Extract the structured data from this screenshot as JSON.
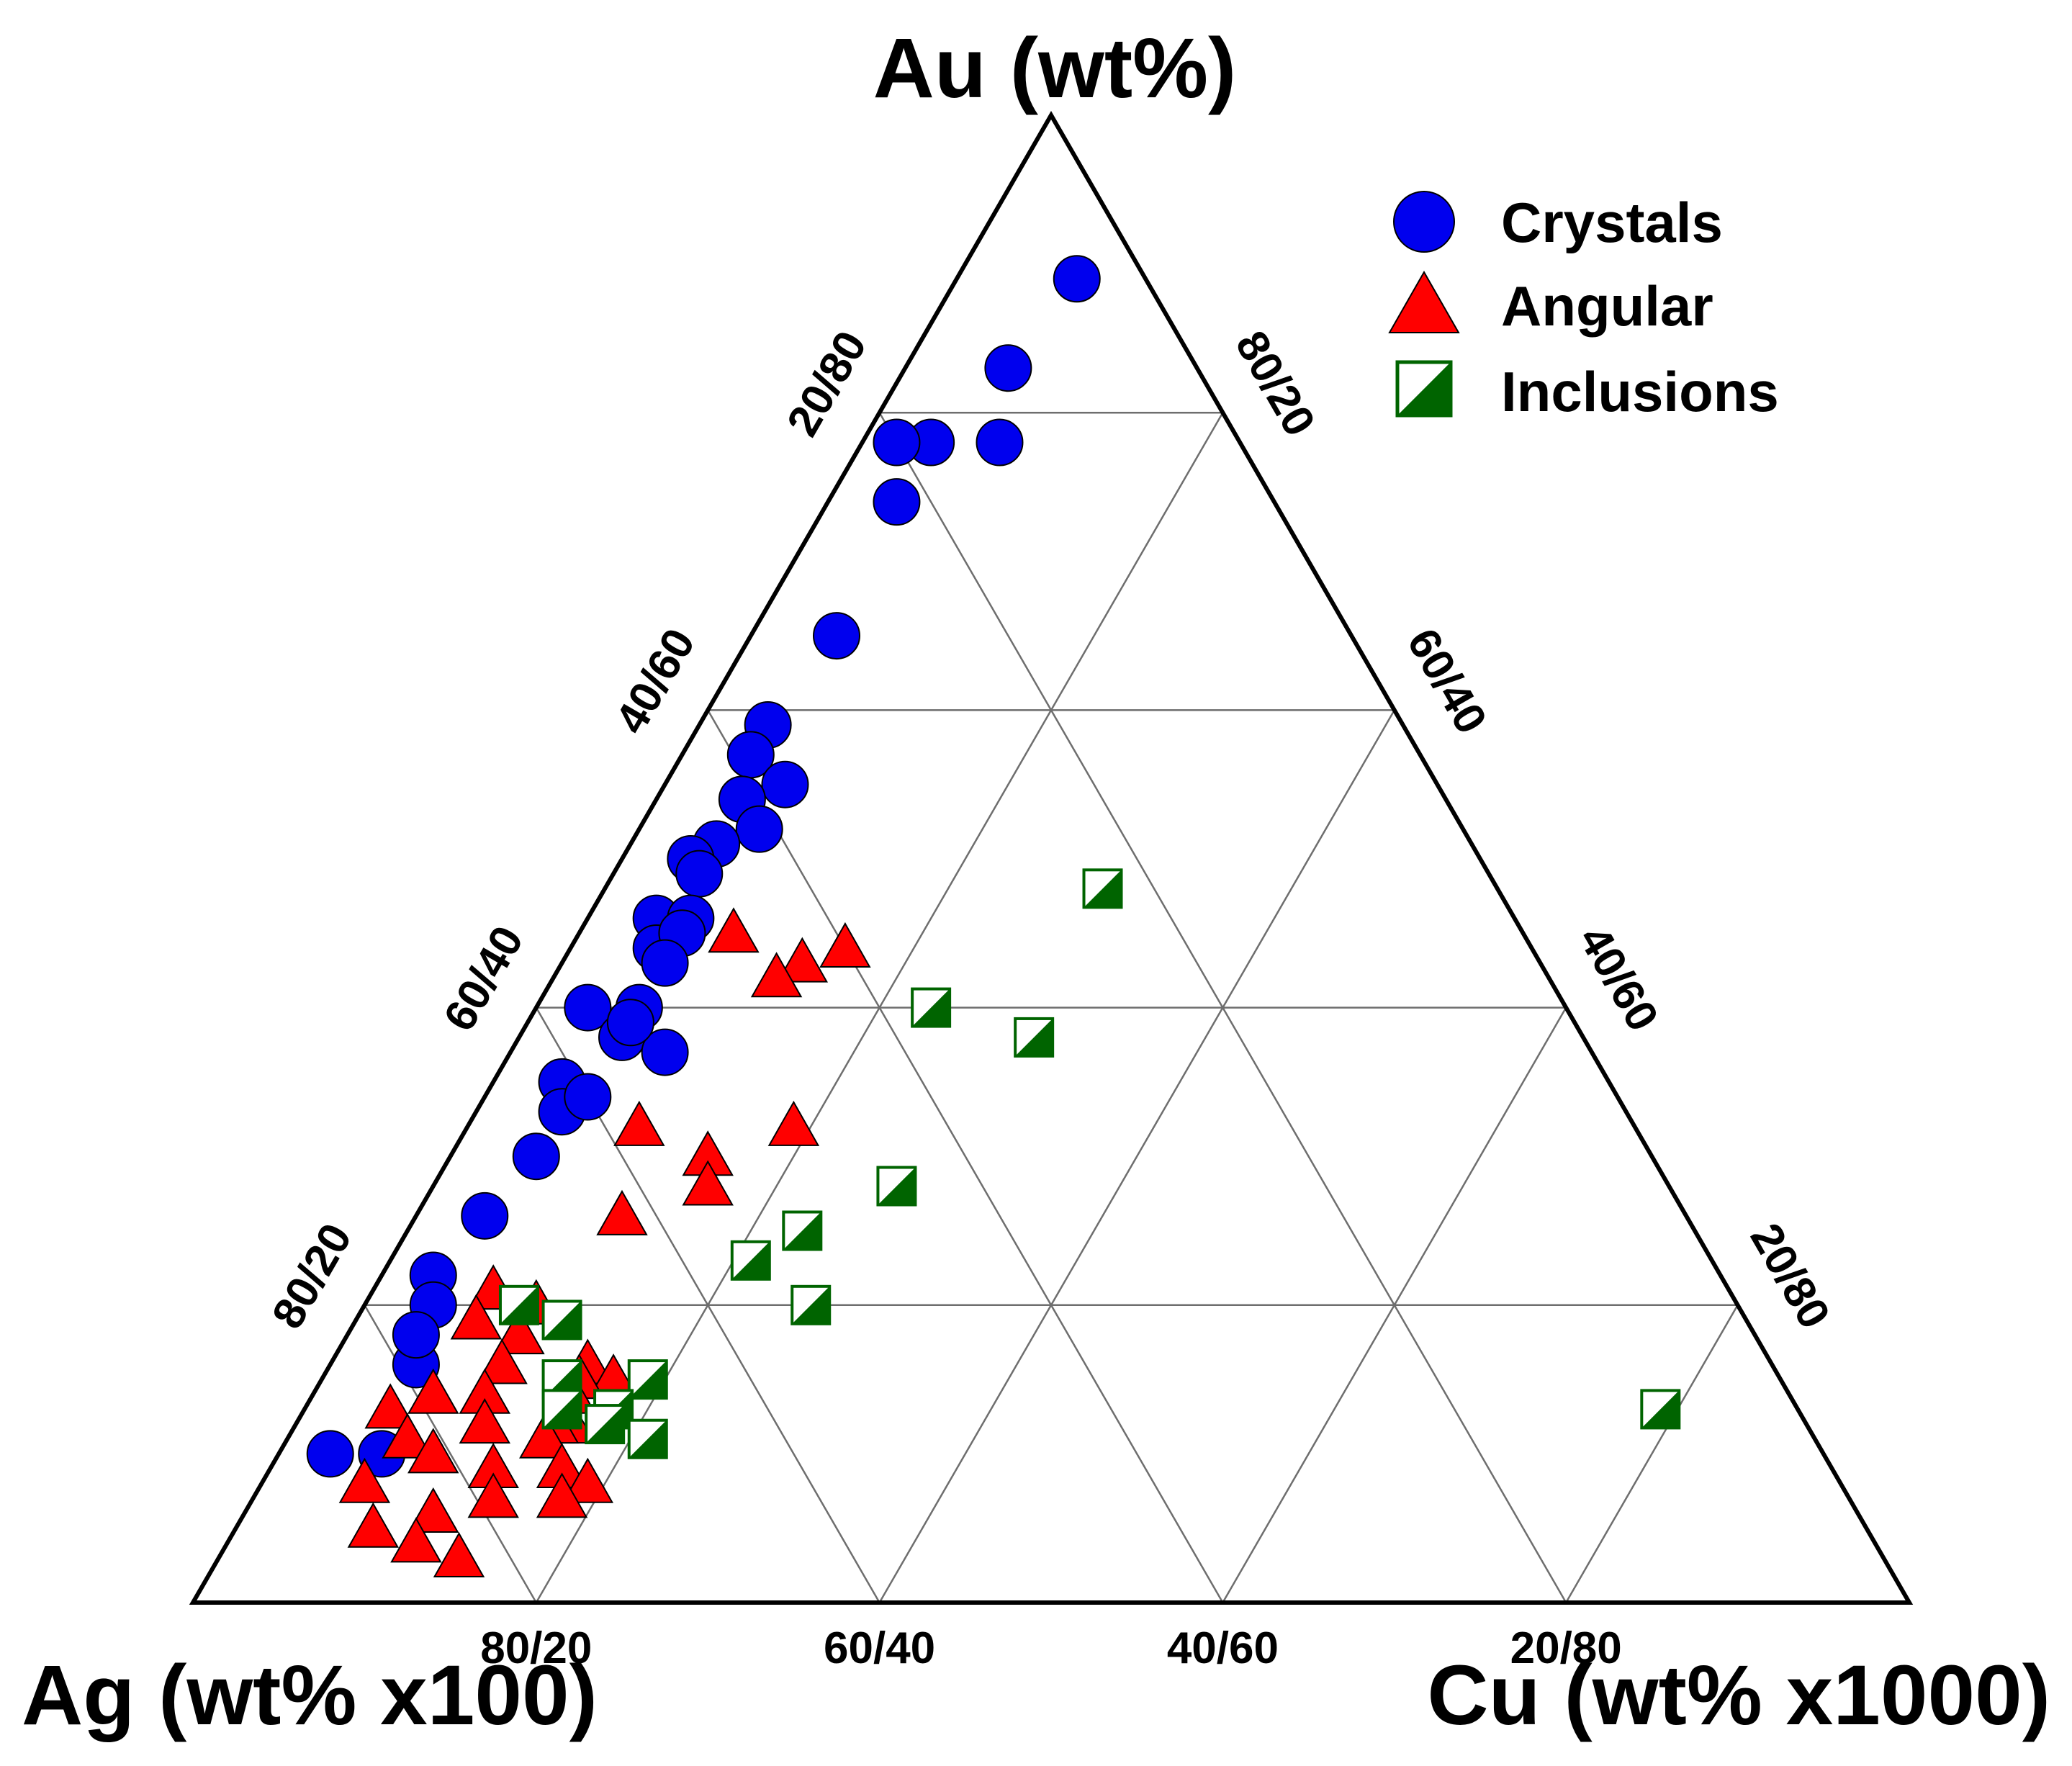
{
  "chart_data": {
    "type": "ternary",
    "axes": {
      "top": "Au (wt%)",
      "left": "Ag (wt% x100)",
      "right": "Cu (wt% x1000)"
    },
    "tick_labels": {
      "left_edge": [
        "80/20",
        "60/40",
        "40/60",
        "20/80"
      ],
      "right_edge": [
        "80/20",
        "60/40",
        "40/60",
        "20/80"
      ],
      "bottom_edge": [
        "80/20",
        "60/40",
        "40/60",
        "20/80"
      ]
    },
    "grid_fractions": [
      0.2,
      0.4,
      0.6,
      0.8
    ],
    "legend": {
      "placement": "top-right"
    },
    "series": [
      {
        "name": "Crystals",
        "marker": "circle",
        "color": "#0000ee",
        "points": [
          {
            "Au": 0.89,
            "Ag": 0.04,
            "Cu": 0.07
          },
          {
            "Au": 0.83,
            "Ag": 0.11,
            "Cu": 0.06
          },
          {
            "Au": 0.78,
            "Ag": 0.14,
            "Cu": 0.08
          },
          {
            "Au": 0.78,
            "Ag": 0.18,
            "Cu": 0.04
          },
          {
            "Au": 0.78,
            "Ag": 0.2,
            "Cu": 0.02
          },
          {
            "Au": 0.74,
            "Ag": 0.22,
            "Cu": 0.04
          },
          {
            "Au": 0.65,
            "Ag": 0.3,
            "Cu": 0.05
          },
          {
            "Au": 0.59,
            "Ag": 0.37,
            "Cu": 0.04
          },
          {
            "Au": 0.57,
            "Ag": 0.39,
            "Cu": 0.04
          },
          {
            "Au": 0.55,
            "Ag": 0.38,
            "Cu": 0.07
          },
          {
            "Au": 0.54,
            "Ag": 0.41,
            "Cu": 0.05
          },
          {
            "Au": 0.52,
            "Ag": 0.41,
            "Cu": 0.07
          },
          {
            "Au": 0.51,
            "Ag": 0.44,
            "Cu": 0.05
          },
          {
            "Au": 0.5,
            "Ag": 0.46,
            "Cu": 0.04
          },
          {
            "Au": 0.49,
            "Ag": 0.46,
            "Cu": 0.05
          },
          {
            "Au": 0.46,
            "Ag": 0.5,
            "Cu": 0.04
          },
          {
            "Au": 0.46,
            "Ag": 0.48,
            "Cu": 0.06
          },
          {
            "Au": 0.44,
            "Ag": 0.51,
            "Cu": 0.05
          },
          {
            "Au": 0.45,
            "Ag": 0.49,
            "Cu": 0.06
          },
          {
            "Au": 0.43,
            "Ag": 0.51,
            "Cu": 0.06
          },
          {
            "Au": 0.4,
            "Ag": 0.54,
            "Cu": 0.06
          },
          {
            "Au": 0.4,
            "Ag": 0.57,
            "Cu": 0.03
          },
          {
            "Au": 0.38,
            "Ag": 0.56,
            "Cu": 0.06
          },
          {
            "Au": 0.37,
            "Ag": 0.54,
            "Cu": 0.09
          },
          {
            "Au": 0.39,
            "Ag": 0.55,
            "Cu": 0.06
          },
          {
            "Au": 0.35,
            "Ag": 0.61,
            "Cu": 0.04
          },
          {
            "Au": 0.33,
            "Ag": 0.62,
            "Cu": 0.05
          },
          {
            "Au": 0.34,
            "Ag": 0.6,
            "Cu": 0.06
          },
          {
            "Au": 0.3,
            "Ag": 0.65,
            "Cu": 0.05
          },
          {
            "Au": 0.26,
            "Ag": 0.7,
            "Cu": 0.04
          },
          {
            "Au": 0.22,
            "Ag": 0.75,
            "Cu": 0.03
          },
          {
            "Au": 0.2,
            "Ag": 0.76,
            "Cu": 0.04
          },
          {
            "Au": 0.16,
            "Ag": 0.79,
            "Cu": 0.05
          },
          {
            "Au": 0.18,
            "Ag": 0.78,
            "Cu": 0.04
          },
          {
            "Au": 0.1,
            "Ag": 0.87,
            "Cu": 0.03
          },
          {
            "Au": 0.1,
            "Ag": 0.84,
            "Cu": 0.06
          }
        ]
      },
      {
        "name": "Angular",
        "marker": "triangle",
        "color": "#ff0000",
        "points": [
          {
            "Au": 0.45,
            "Ag": 0.46,
            "Cu": 0.09
          },
          {
            "Au": 0.44,
            "Ag": 0.4,
            "Cu": 0.16
          },
          {
            "Au": 0.43,
            "Ag": 0.43,
            "Cu": 0.14
          },
          {
            "Au": 0.42,
            "Ag": 0.45,
            "Cu": 0.13
          },
          {
            "Au": 0.32,
            "Ag": 0.58,
            "Cu": 0.1
          },
          {
            "Au": 0.32,
            "Ag": 0.49,
            "Cu": 0.19
          },
          {
            "Au": 0.3,
            "Ag": 0.55,
            "Cu": 0.15
          },
          {
            "Au": 0.28,
            "Ag": 0.56,
            "Cu": 0.16
          },
          {
            "Au": 0.26,
            "Ag": 0.62,
            "Cu": 0.12
          },
          {
            "Au": 0.21,
            "Ag": 0.72,
            "Cu": 0.07
          },
          {
            "Au": 0.19,
            "Ag": 0.74,
            "Cu": 0.07
          },
          {
            "Au": 0.2,
            "Ag": 0.7,
            "Cu": 0.1
          },
          {
            "Au": 0.18,
            "Ag": 0.72,
            "Cu": 0.1
          },
          {
            "Au": 0.16,
            "Ag": 0.74,
            "Cu": 0.1
          },
          {
            "Au": 0.16,
            "Ag": 0.69,
            "Cu": 0.15
          },
          {
            "Au": 0.15,
            "Ag": 0.68,
            "Cu": 0.17
          },
          {
            "Au": 0.15,
            "Ag": 0.7,
            "Cu": 0.15
          },
          {
            "Au": 0.14,
            "Ag": 0.71,
            "Cu": 0.15
          },
          {
            "Au": 0.14,
            "Ag": 0.79,
            "Cu": 0.07
          },
          {
            "Au": 0.13,
            "Ag": 0.82,
            "Cu": 0.05
          },
          {
            "Au": 0.14,
            "Ag": 0.76,
            "Cu": 0.1
          },
          {
            "Au": 0.12,
            "Ag": 0.77,
            "Cu": 0.11
          },
          {
            "Au": 0.12,
            "Ag": 0.72,
            "Cu": 0.16
          },
          {
            "Au": 0.12,
            "Ag": 0.73,
            "Cu": 0.15
          },
          {
            "Au": 0.11,
            "Ag": 0.82,
            "Cu": 0.07
          },
          {
            "Au": 0.11,
            "Ag": 0.74,
            "Cu": 0.15
          },
          {
            "Au": 0.1,
            "Ag": 0.81,
            "Cu": 0.09
          },
          {
            "Au": 0.09,
            "Ag": 0.78,
            "Cu": 0.13
          },
          {
            "Au": 0.09,
            "Ag": 0.74,
            "Cu": 0.17
          },
          {
            "Au": 0.08,
            "Ag": 0.86,
            "Cu": 0.06
          },
          {
            "Au": 0.08,
            "Ag": 0.73,
            "Cu": 0.19
          },
          {
            "Au": 0.07,
            "Ag": 0.79,
            "Cu": 0.14
          },
          {
            "Au": 0.07,
            "Ag": 0.75,
            "Cu": 0.18
          },
          {
            "Au": 0.06,
            "Ag": 0.83,
            "Cu": 0.11
          },
          {
            "Au": 0.05,
            "Ag": 0.87,
            "Cu": 0.08
          },
          {
            "Au": 0.04,
            "Ag": 0.85,
            "Cu": 0.11
          },
          {
            "Au": 0.03,
            "Ag": 0.83,
            "Cu": 0.14
          }
        ]
      },
      {
        "name": "Inclusions",
        "marker": "half-filled-square",
        "color": "#006400",
        "points": [
          {
            "Au": 0.48,
            "Ag": 0.23,
            "Cu": 0.29
          },
          {
            "Au": 0.4,
            "Ag": 0.37,
            "Cu": 0.23
          },
          {
            "Au": 0.38,
            "Ag": 0.32,
            "Cu": 0.3
          },
          {
            "Au": 0.28,
            "Ag": 0.45,
            "Cu": 0.27
          },
          {
            "Au": 0.25,
            "Ag": 0.52,
            "Cu": 0.23
          },
          {
            "Au": 0.23,
            "Ag": 0.56,
            "Cu": 0.21
          },
          {
            "Au": 0.2,
            "Ag": 0.54,
            "Cu": 0.26
          },
          {
            "Au": 0.2,
            "Ag": 0.71,
            "Cu": 0.09
          },
          {
            "Au": 0.19,
            "Ag": 0.69,
            "Cu": 0.12
          },
          {
            "Au": 0.15,
            "Ag": 0.71,
            "Cu": 0.14
          },
          {
            "Au": 0.15,
            "Ag": 0.66,
            "Cu": 0.19
          },
          {
            "Au": 0.13,
            "Ag": 0.72,
            "Cu": 0.15
          },
          {
            "Au": 0.13,
            "Ag": 0.69,
            "Cu": 0.18
          },
          {
            "Au": 0.12,
            "Ag": 0.7,
            "Cu": 0.18
          },
          {
            "Au": 0.11,
            "Ag": 0.68,
            "Cu": 0.21
          },
          {
            "Au": 0.13,
            "Ag": 0.08,
            "Cu": 0.79
          }
        ]
      }
    ]
  }
}
